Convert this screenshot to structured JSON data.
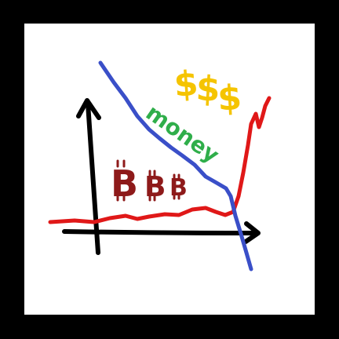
{
  "drawing": {
    "labels": {
      "bitcoin_glyph": "B",
      "dollar_glyph": "$",
      "money_word": "money"
    },
    "colors": {
      "frame": "#000000",
      "background": "#ffffff",
      "axes": "#000000",
      "blue_line": "#3a4fc8",
      "red_line": "#e01818",
      "money_text": "#2fae4a",
      "dollar_signs": "#f5c400",
      "bitcoin_signs": "#8e1a1a"
    }
  }
}
